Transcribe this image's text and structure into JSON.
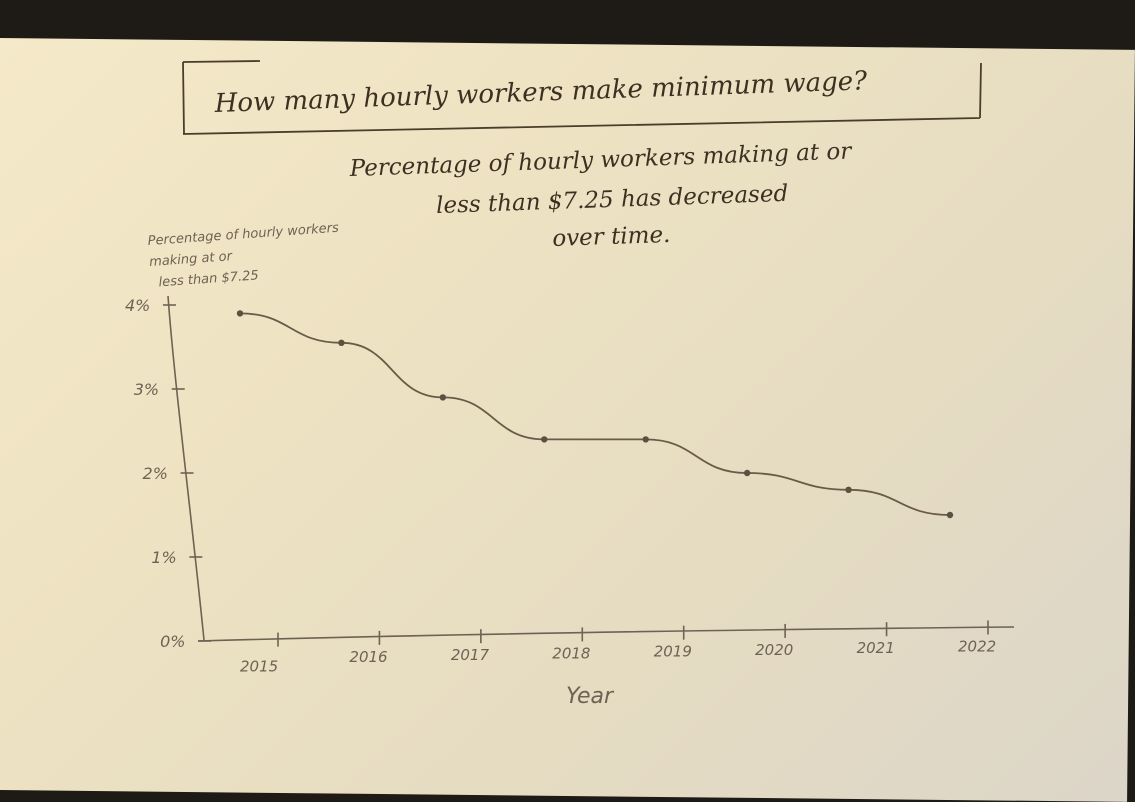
{
  "header": {
    "boxed_title": "How many hourly workers make minimum wage?",
    "subtitle": "Percentage of hourly workers making at or less than $7.25 has decreased over time."
  },
  "chart_data": {
    "type": "line",
    "title": "How many hourly workers make minimum wage?",
    "subtitle": "Percentage of hourly workers making at or less than $7.25 has decreased over time.",
    "xlabel": "Year",
    "ylabel": "Percentage of hourly workers making at or less than $7.25",
    "x": [
      "2015",
      "2016",
      "2017",
      "2018",
      "2019",
      "2020",
      "2021",
      "2022"
    ],
    "y_ticks": [
      "0%",
      "1%",
      "2%",
      "3%",
      "4%"
    ],
    "ylim": [
      0,
      4
    ],
    "series": [
      {
        "values": [
          3.9,
          3.55,
          2.9,
          2.4,
          2.4,
          2.0,
          1.8,
          1.5
        ]
      }
    ],
    "grid": false,
    "legend": "none"
  }
}
